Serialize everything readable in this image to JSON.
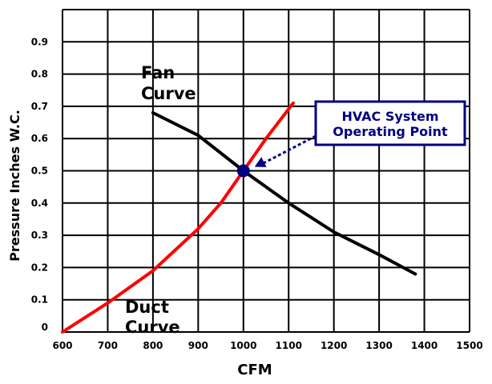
{
  "chart_data": {
    "type": "line",
    "xlabel": "CFM",
    "ylabel": "Pressure Inches W.C.",
    "xlim": [
      600,
      1500
    ],
    "ylim": [
      0,
      1.0
    ],
    "x_ticks": [
      "600",
      "700",
      "800",
      "900",
      "1000",
      "1100",
      "1200",
      "1300",
      "1400",
      "1500"
    ],
    "y_ticks": [
      "0",
      "0.1",
      "0.2",
      "0.3",
      "0.4",
      "0.5",
      "0.6",
      "0.7",
      "0.8",
      "0.9"
    ],
    "grid": true,
    "series": [
      {
        "name": "Fan Curve",
        "color": "#000000",
        "points": [
          [
            800,
            0.68
          ],
          [
            900,
            0.61
          ],
          [
            1000,
            0.5
          ],
          [
            1100,
            0.4
          ],
          [
            1200,
            0.31
          ],
          [
            1300,
            0.24
          ],
          [
            1380,
            0.18
          ]
        ]
      },
      {
        "name": "Duct Curve",
        "color": "#ff0000",
        "points": [
          [
            600,
            0.0
          ],
          [
            700,
            0.09
          ],
          [
            800,
            0.19
          ],
          [
            900,
            0.32
          ],
          [
            950,
            0.4
          ],
          [
            1000,
            0.5
          ],
          [
            1050,
            0.6
          ],
          [
            1110,
            0.71
          ]
        ]
      }
    ],
    "labels": {
      "fan_curve": [
        "Fan",
        "Curve"
      ],
      "duct_curve": [
        "Duct",
        "Curve"
      ]
    },
    "operating_point": {
      "x": 1000,
      "y": 0.5,
      "color": "#000080"
    },
    "annotation": {
      "lines": [
        "HVAC System",
        "Operating Point"
      ],
      "color": "#000080"
    }
  }
}
